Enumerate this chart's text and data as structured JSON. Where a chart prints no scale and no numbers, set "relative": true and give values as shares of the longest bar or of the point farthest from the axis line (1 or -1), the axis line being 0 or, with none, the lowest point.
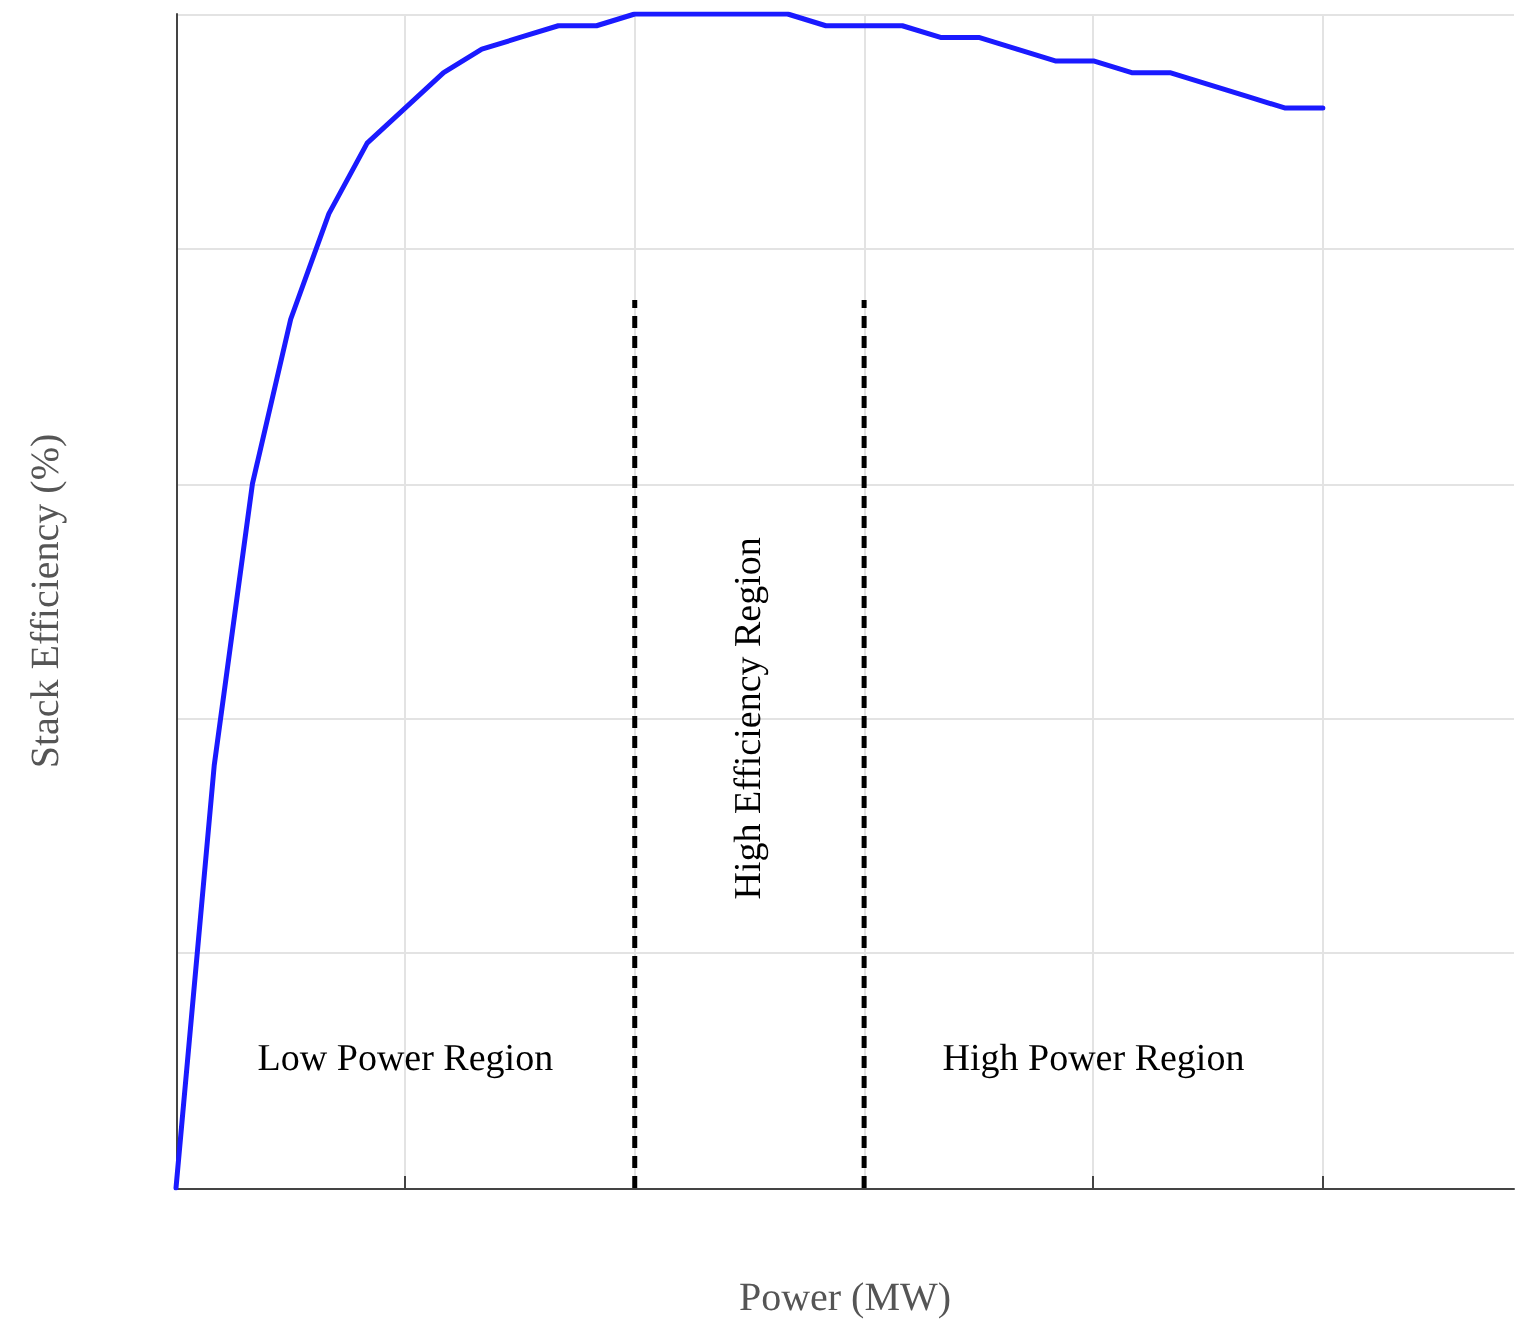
{
  "chart_data": {
    "type": "line",
    "relative": true,
    "xlabel": "Power (MW)",
    "ylabel": "Stack Efficiency (%)",
    "categories": [
      null,
      null,
      null,
      null,
      null,
      null,
      null,
      null,
      null,
      null,
      null,
      null,
      null,
      null,
      null,
      null,
      null,
      null,
      null,
      null,
      null,
      null,
      null,
      null,
      null,
      null,
      null,
      null,
      null,
      null,
      null,
      null,
      null,
      null,
      null,
      null
    ],
    "grid": true,
    "marker": "none",
    "series": [
      {
        "color": "#1a1aff",
        "values": [
          0,
          0.36,
          0.6,
          0.74,
          0.83,
          0.89,
          0.92,
          0.95,
          0.97,
          0.98,
          0.99,
          0.99,
          1.0,
          1.0,
          1.0,
          1.0,
          1.0,
          0.99,
          0.99,
          0.99,
          0.98,
          0.98,
          0.97,
          0.96,
          0.96,
          0.95,
          0.95,
          0.94,
          0.93,
          0.92,
          0.92,
          null,
          null,
          null,
          null,
          null
        ]
      }
    ],
    "annotations": [
      "Low Power Region",
      "High Efficiency Region",
      "High Power Region"
    ]
  }
}
